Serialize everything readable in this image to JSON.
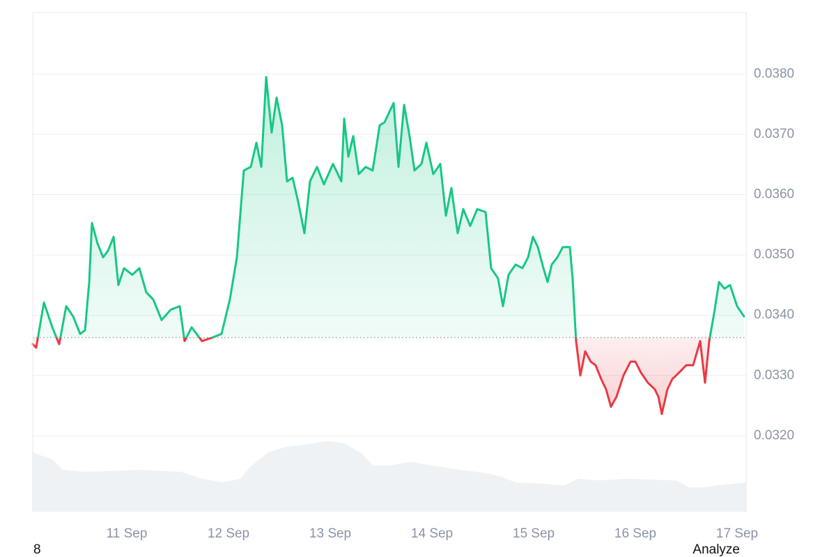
{
  "chart_data": {
    "type": "line",
    "color_up": "#16c784",
    "color_down": "#ea3943",
    "baseline": 0.03363,
    "xlim": [
      10.075,
      17.089
    ],
    "xticks": [
      {
        "value": 11,
        "label": "11 Sep"
      },
      {
        "value": 12,
        "label": "12 Sep"
      },
      {
        "value": 13,
        "label": "13 Sep"
      },
      {
        "value": 14,
        "label": "14 Sep"
      },
      {
        "value": 15,
        "label": "15 Sep"
      },
      {
        "value": 16,
        "label": "16 Sep"
      },
      {
        "value": 17,
        "label": "17 Sep"
      }
    ],
    "ylim": [
      0.03074,
      0.03902
    ],
    "yticks": [
      {
        "value": 0.032,
        "label": "0.0320"
      },
      {
        "value": 0.033,
        "label": "0.0330"
      },
      {
        "value": 0.034,
        "label": "0.0340"
      },
      {
        "value": 0.035,
        "label": "0.0350"
      },
      {
        "value": 0.036,
        "label": "0.0360"
      },
      {
        "value": 0.037,
        "label": "0.0370"
      },
      {
        "value": 0.038,
        "label": "0.0380"
      }
    ],
    "grid": true,
    "x": [
      10.075,
      10.109,
      10.185,
      10.267,
      10.335,
      10.404,
      10.472,
      10.541,
      10.589,
      10.63,
      10.657,
      10.712,
      10.767,
      10.815,
      10.87,
      10.917,
      10.972,
      11.054,
      11.123,
      11.191,
      11.26,
      11.342,
      11.431,
      11.52,
      11.568,
      11.637,
      11.739,
      11.842,
      11.931,
      12.013,
      12.082,
      12.15,
      12.219,
      12.274,
      12.322,
      12.37,
      12.424,
      12.472,
      12.527,
      12.575,
      12.63,
      12.685,
      12.746,
      12.801,
      12.87,
      12.938,
      13.027,
      13.109,
      13.137,
      13.178,
      13.226,
      13.28,
      13.349,
      13.417,
      13.486,
      13.534,
      13.623,
      13.671,
      13.726,
      13.78,
      13.828,
      13.897,
      13.945,
      14.013,
      14.082,
      14.137,
      14.191,
      14.253,
      14.308,
      14.376,
      14.445,
      14.527,
      14.582,
      14.65,
      14.698,
      14.753,
      14.822,
      14.89,
      14.945,
      14.993,
      15.041,
      15.096,
      15.137,
      15.178,
      15.233,
      15.287,
      15.356,
      15.383,
      15.417,
      15.459,
      15.507,
      15.561,
      15.609,
      15.664,
      15.712,
      15.76,
      15.815,
      15.883,
      15.952,
      16.0,
      16.054,
      16.123,
      16.191,
      16.226,
      16.26,
      16.315,
      16.363,
      16.431,
      16.5,
      16.568,
      16.637,
      16.685,
      16.726,
      16.774,
      16.822,
      16.876,
      16.931,
      17.0,
      17.068
    ],
    "values": [
      0.03352,
      0.03346,
      0.03421,
      0.0338,
      0.03352,
      0.03415,
      0.03398,
      0.03369,
      0.03375,
      0.03455,
      0.03553,
      0.03519,
      0.03496,
      0.03507,
      0.0353,
      0.0345,
      0.03478,
      0.03467,
      0.03478,
      0.03438,
      0.03426,
      0.03392,
      0.03409,
      0.03415,
      0.03357,
      0.0338,
      0.03357,
      0.03363,
      0.03369,
      0.03426,
      0.03496,
      0.0364,
      0.03646,
      0.03686,
      0.03646,
      0.03795,
      0.03703,
      0.03761,
      0.03715,
      0.03622,
      0.03628,
      0.03588,
      0.03536,
      0.03622,
      0.03646,
      0.03617,
      0.03651,
      0.03622,
      0.03726,
      0.03663,
      0.03697,
      0.03634,
      0.03646,
      0.0364,
      0.03715,
      0.0372,
      0.03752,
      0.03646,
      0.03749,
      0.03697,
      0.0364,
      0.03651,
      0.03686,
      0.03634,
      0.03651,
      0.03565,
      0.03611,
      0.03536,
      0.03576,
      0.03548,
      0.03576,
      0.03571,
      0.03478,
      0.03461,
      0.03415,
      0.03467,
      0.03484,
      0.03478,
      0.03496,
      0.0353,
      0.03513,
      0.03478,
      0.03455,
      0.03484,
      0.03496,
      0.03513,
      0.03513,
      0.03461,
      0.03357,
      0.033,
      0.0334,
      0.03323,
      0.03317,
      0.03294,
      0.03277,
      0.03248,
      0.03265,
      0.033,
      0.03323,
      0.03323,
      0.03305,
      0.03288,
      0.03277,
      0.03265,
      0.03236,
      0.03277,
      0.03294,
      0.03305,
      0.03317,
      0.03317,
      0.03357,
      0.03288,
      0.03357,
      0.03403,
      0.03455,
      0.03444,
      0.0345,
      0.03415,
      0.03398
    ],
    "volume": {
      "axis": "y2",
      "color": "#eff2f5",
      "x": [
        10.075,
        10.267,
        10.37,
        10.575,
        10.78,
        11.123,
        11.534,
        11.739,
        11.945,
        12.116,
        12.219,
        12.39,
        12.561,
        12.767,
        12.972,
        13.143,
        13.315,
        13.417,
        13.589,
        13.794,
        14.0,
        14.274,
        14.548,
        14.685,
        14.822,
        15.096,
        15.301,
        15.438,
        15.643,
        15.917,
        16.397,
        16.534,
        16.671,
        16.808,
        17.089
      ],
      "values": [
        11.9,
        10.5,
        8.4,
        8.0,
        8.1,
        8.4,
        8.0,
        6.6,
        5.9,
        6.6,
        9.1,
        11.9,
        13.0,
        13.5,
        14.2,
        13.7,
        11.6,
        9.3,
        9.3,
        10.0,
        9.3,
        8.4,
        7.7,
        7.0,
        5.9,
        5.6,
        5.3,
        6.6,
        6.3,
        6.6,
        6.3,
        4.9,
        4.9,
        5.3,
        5.9
      ]
    },
    "y2lim": [
      0,
      100
    ],
    "y2ticks": [],
    "footer_left": "8",
    "footer_right": "Analyze"
  }
}
